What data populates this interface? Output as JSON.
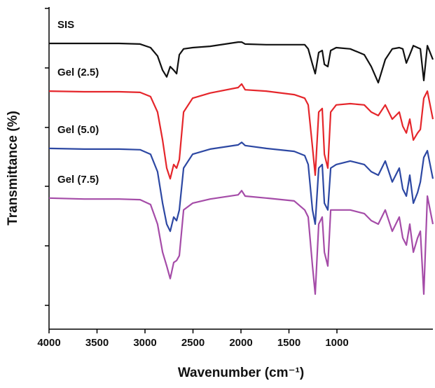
{
  "chart_data": {
    "type": "line",
    "x_label": "Wavenumber (cm⁻¹)",
    "y_label": "Transmittance (%)",
    "xlim": [
      4000,
      0
    ],
    "ylim": [
      0,
      100
    ],
    "xticks": [
      4000,
      3500,
      3000,
      2500,
      2000,
      1500,
      1000
    ],
    "x": [
      4000,
      3635,
      3270,
      3051,
      2942,
      2869,
      2817,
      2774,
      2737,
      2701,
      2671,
      2642,
      2598,
      2504,
      2321,
      2029,
      1993,
      1956,
      1737,
      1445,
      1336,
      1299,
      1255,
      1226,
      1190,
      1153,
      1131,
      1095,
      1065,
      1007,
      861,
      715,
      642,
      569,
      496,
      423,
      350,
      314,
      277,
      241,
      204,
      160,
      131,
      95,
      58,
      0
    ],
    "series": [
      {
        "name": "SIS",
        "color": "#111111",
        "values": [
          88.7,
          88.7,
          88.7,
          88.5,
          87.4,
          84.8,
          80.4,
          78.3,
          81.5,
          80.4,
          79.3,
          85.2,
          87.0,
          87.4,
          87.8,
          89.1,
          89.1,
          88.5,
          88.3,
          88.3,
          88.3,
          87.0,
          82.2,
          79.3,
          85.9,
          86.5,
          82.2,
          81.5,
          86.5,
          87.4,
          87.0,
          85.2,
          81.5,
          76.5,
          83.7,
          87.0,
          87.4,
          87.0,
          82.6,
          85.2,
          88.0,
          87.4,
          87.0,
          77.2,
          88.0,
          83.7
        ]
      },
      {
        "name": "Gel (2.5)",
        "color": "#e5262b",
        "values": [
          73.9,
          73.7,
          73.7,
          73.5,
          72.2,
          67.4,
          58.7,
          50.0,
          46.7,
          51.1,
          50.0,
          52.6,
          67.4,
          71.7,
          73.3,
          75.0,
          76.1,
          74.3,
          73.9,
          72.8,
          71.7,
          69.6,
          56.5,
          47.8,
          67.4,
          68.5,
          54.3,
          50.0,
          67.4,
          69.6,
          70.0,
          69.6,
          67.4,
          66.3,
          69.6,
          65.2,
          67.4,
          63.0,
          60.9,
          65.2,
          58.7,
          60.9,
          62.0,
          71.7,
          73.9,
          65.2
        ]
      },
      {
        "name": "Gel (5.0)",
        "color": "#2d48a3",
        "values": [
          56.1,
          55.9,
          55.9,
          55.7,
          54.3,
          48.9,
          39.1,
          32.6,
          30.4,
          34.8,
          33.7,
          37.0,
          50.0,
          54.3,
          55.9,
          57.2,
          58.0,
          57.0,
          56.1,
          55.2,
          53.9,
          51.1,
          37.0,
          32.6,
          50.0,
          51.1,
          39.1,
          37.0,
          50.0,
          51.1,
          52.2,
          51.1,
          48.9,
          47.8,
          52.2,
          45.7,
          50.0,
          43.5,
          41.3,
          47.8,
          39.1,
          42.4,
          45.7,
          53.3,
          55.4,
          46.7
        ]
      },
      {
        "name": "Gel (7.5)",
        "color": "#a54ca8",
        "values": [
          40.7,
          40.4,
          40.4,
          40.2,
          38.7,
          32.6,
          23.9,
          19.6,
          15.7,
          20.7,
          21.3,
          22.8,
          37.0,
          39.1,
          40.4,
          41.7,
          43.0,
          41.3,
          40.7,
          39.8,
          37.0,
          34.8,
          19.6,
          10.9,
          32.6,
          34.8,
          23.9,
          19.6,
          37.0,
          37.0,
          37.0,
          35.9,
          33.7,
          32.6,
          37.0,
          30.4,
          34.8,
          28.3,
          26.1,
          32.6,
          23.9,
          28.3,
          30.4,
          10.9,
          41.3,
          32.6
        ]
      }
    ]
  }
}
